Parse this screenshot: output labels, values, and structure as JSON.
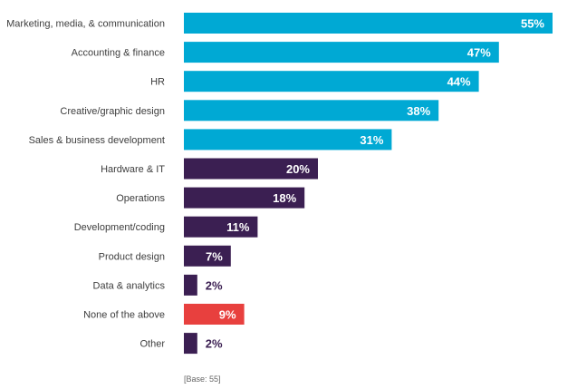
{
  "chart_data": {
    "type": "bar",
    "orientation": "horizontal",
    "categories": [
      "Marketing, media, & communication",
      "Accounting & finance",
      "HR",
      "Creative/graphic design",
      "Sales & business development",
      "Hardware & IT",
      "Operations",
      "Development/coding",
      "Product design",
      "Data & analytics",
      "None of the above",
      "Other"
    ],
    "values": [
      55,
      47,
      44,
      38,
      31,
      20,
      18,
      11,
      7,
      2,
      9,
      2
    ],
    "value_labels": [
      "55%",
      "47%",
      "44%",
      "38%",
      "31%",
      "20%",
      "18%",
      "11%",
      "7%",
      "2%",
      "9%",
      "2%"
    ],
    "bar_colors": [
      "#00a9d4",
      "#00a9d4",
      "#00a9d4",
      "#00a9d4",
      "#00a9d4",
      "#3b1f52",
      "#3b1f52",
      "#3b1f52",
      "#3b1f52",
      "#3b1f52",
      "#e8403e",
      "#3b1f52"
    ],
    "xlim": [
      0,
      55
    ],
    "grid": false,
    "legend": "none",
    "title": "",
    "xlabel": "",
    "ylabel": "",
    "footnote": "[Base: 55]"
  },
  "colors": {
    "label_inside": "#ffffff",
    "label_outside": "#3b1f52",
    "category_text": "#3d3d3d"
  }
}
